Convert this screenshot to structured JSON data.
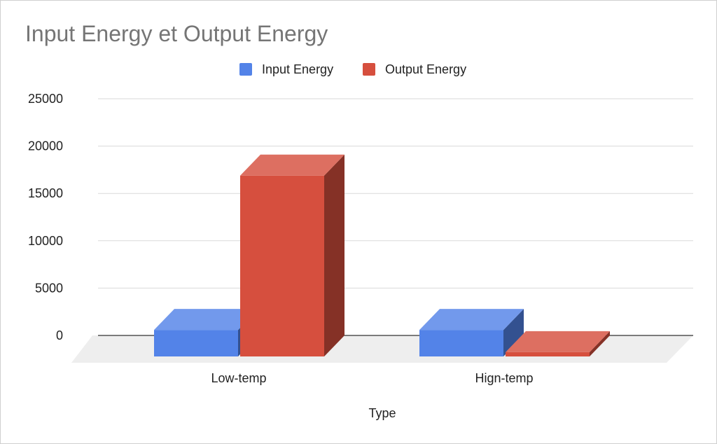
{
  "chart_data": {
    "type": "bar",
    "title": "Input Energy et Output Energy",
    "xlabel": "Type",
    "ylabel": "",
    "categories": [
      "Low-temp",
      "Hign-temp"
    ],
    "series": [
      {
        "name": "Input Energy",
        "values": [
          2800,
          2800
        ],
        "color": "#5383e8"
      },
      {
        "name": "Output Energy",
        "values": [
          19100,
          450
        ],
        "color": "#d64f3e"
      }
    ],
    "ylim": [
      0,
      25000
    ],
    "yticks": [
      0,
      5000,
      10000,
      15000,
      20000,
      25000
    ],
    "grid": true,
    "legend_position": "top",
    "style": "3d"
  }
}
